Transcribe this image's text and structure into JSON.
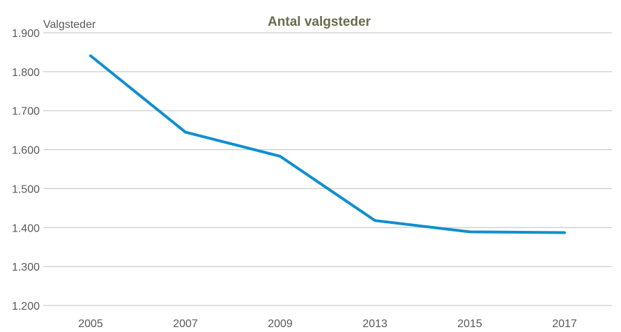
{
  "chart_data": {
    "type": "line",
    "title": "Antal valgsteder",
    "ylabel": "Valgsteder",
    "xlabel": "",
    "categories": [
      "2005",
      "2007",
      "2009",
      "2013",
      "2015",
      "2017"
    ],
    "series": [
      {
        "values": [
          1841,
          1645,
          1583,
          1418,
          1389,
          1387
        ]
      }
    ],
    "ylim": [
      1200,
      1900
    ],
    "yticks": [
      {
        "value": 1900,
        "label": "1.900"
      },
      {
        "value": 1800,
        "label": "1.800"
      },
      {
        "value": 1700,
        "label": "1.700"
      },
      {
        "value": 1600,
        "label": "1.600"
      },
      {
        "value": 1500,
        "label": "1.500"
      },
      {
        "value": 1400,
        "label": "1.400"
      },
      {
        "value": 1300,
        "label": "1.300"
      },
      {
        "value": 1200,
        "label": "1.200"
      }
    ],
    "grid": true,
    "legend": "none",
    "colors": {
      "series": "#0f8fd0",
      "title": "#6b6b4f",
      "grid": "#bfbfbf",
      "text": "#595959"
    }
  }
}
